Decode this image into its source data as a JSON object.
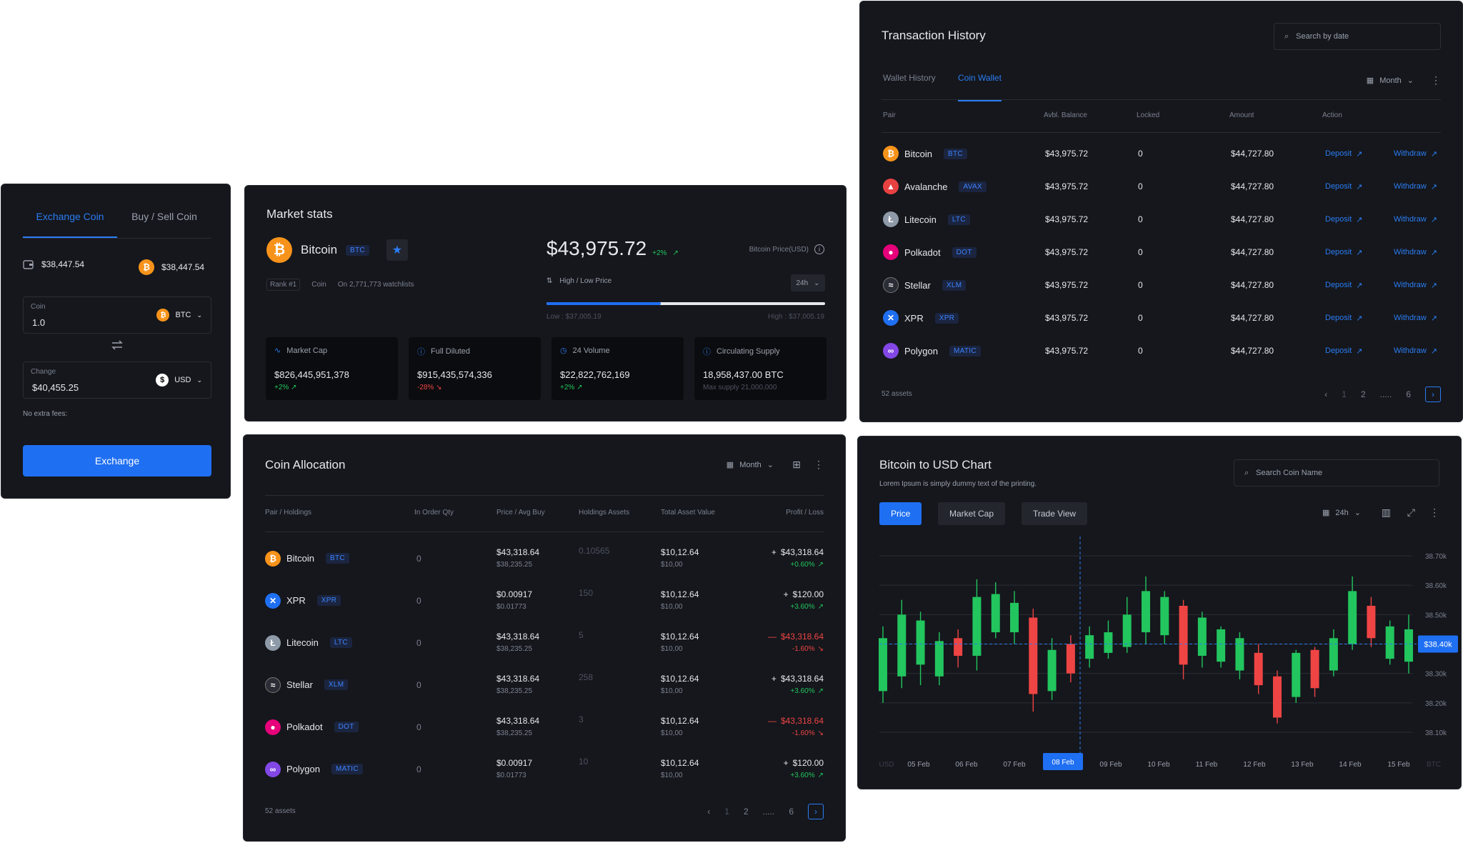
{
  "exchange": {
    "tabs": [
      "Exchange Coin",
      "Buy / Sell Coin"
    ],
    "wallet_balance": "$38,447.54",
    "btc_balance": "$38,447.54",
    "coin_label": "Coin",
    "coin_value": "1.0",
    "coin_select": "BTC",
    "change_label": "Change",
    "change_value": "$40,455.25",
    "change_select": "USD",
    "fee_note": "No extra fees:",
    "button": "Exchange"
  },
  "market": {
    "title": "Market stats",
    "coin_name": "Bitcoin",
    "coin_symbol": "BTC",
    "rank": "Rank #1",
    "type": "Coin",
    "watchlists": "On 2,771,773 watchlists",
    "price": "$43,975.72",
    "price_change": "+2%",
    "price_label": "Bitcoin Price(USD)",
    "hl_label": "High / Low Price",
    "hl_period": "24h",
    "range_fill": 0.41,
    "low": "Low : $37,005.19",
    "high": "High : $37,005.19",
    "stats": [
      {
        "label": "Market Cap",
        "value": "$826,445,951,378",
        "delta": "+2%",
        "dir": "up",
        "icon": "trend-icon"
      },
      {
        "label": "Full Diluted",
        "value": "$915,435,574,336",
        "delta": "-28%",
        "dir": "down",
        "icon": "info-icon"
      },
      {
        "label": "24 Volume",
        "value": "$22,822,762,169",
        "delta": "+2%",
        "dir": "up",
        "icon": "clock-icon"
      },
      {
        "label": "Circulating Supply",
        "value": "18,958,437.00 BTC",
        "delta": "Max supply 21,000,000",
        "dir": "none",
        "icon": "info-icon"
      }
    ]
  },
  "txn": {
    "title": "Transaction History",
    "search_placeholder": "Search by date",
    "tabs": [
      "Wallet History",
      "Coin Wallet"
    ],
    "period": "Month",
    "headers": [
      "Pair",
      "Avbl. Balance",
      "Locked",
      "Amount",
      "Action"
    ],
    "rows": [
      {
        "name": "Bitcoin",
        "sym": "BTC",
        "cls": "c-btc",
        "glyph": "₿",
        "bal": "$43,975.72",
        "locked": "0",
        "amount": "$44,727.80"
      },
      {
        "name": "Avalanche",
        "sym": "AVAX",
        "cls": "c-avax",
        "glyph": "▲",
        "bal": "$43,975.72",
        "locked": "0",
        "amount": "$44,727.80"
      },
      {
        "name": "Litecoin",
        "sym": "LTC",
        "cls": "c-ltc",
        "glyph": "Ł",
        "bal": "$43,975.72",
        "locked": "0",
        "amount": "$44,727.80"
      },
      {
        "name": "Polkadot",
        "sym": "DOT",
        "cls": "c-dot",
        "glyph": "●",
        "bal": "$43,975.72",
        "locked": "0",
        "amount": "$44,727.80"
      },
      {
        "name": "Stellar",
        "sym": "XLM",
        "cls": "c-xlm",
        "glyph": "≈",
        "bal": "$43,975.72",
        "locked": "0",
        "amount": "$44,727.80"
      },
      {
        "name": "XPR",
        "sym": "XPR",
        "cls": "c-xpr",
        "glyph": "✕",
        "bal": "$43,975.72",
        "locked": "0",
        "amount": "$44,727.80"
      },
      {
        "name": "Polygon",
        "sym": "MATIC",
        "cls": "c-matic",
        "glyph": "∞",
        "bal": "$43,975.72",
        "locked": "0",
        "amount": "$44,727.80"
      }
    ],
    "deposit": "Deposit",
    "withdraw": "Withdraw",
    "footer": "52 assets",
    "pages": [
      "1",
      "2",
      ".....",
      "6"
    ]
  },
  "alloc": {
    "title": "Coin Allocation",
    "period": "Month",
    "headers": [
      "Pair / Holdings",
      "In Order Qty",
      "Price / Avg Buy",
      "Holdings Assets",
      "Total Asset Value",
      "Profit / Loss"
    ],
    "rows": [
      {
        "name": "Bitcoin",
        "sym": "BTC",
        "cls": "c-btc",
        "glyph": "₿",
        "qty": "0",
        "price": "$43,318.64",
        "avg": "$38,235.25",
        "hold": "0.10565",
        "total": "$10,12.64",
        "total2": "$10,00",
        "pl": "$43,318.64",
        "pct": "+0.60%",
        "dir": "up"
      },
      {
        "name": "XPR",
        "sym": "XPR",
        "cls": "c-xpr",
        "glyph": "✕",
        "qty": "0",
        "price": "$0.00917",
        "avg": "$0.01773",
        "hold": "150",
        "total": "$10,12.64",
        "total2": "$10,00",
        "pl": "$120.00",
        "pct": "+3.60%",
        "dir": "up"
      },
      {
        "name": "Litecoin",
        "sym": "LTC",
        "cls": "c-ltc",
        "glyph": "Ł",
        "qty": "0",
        "price": "$43,318.64",
        "avg": "$38,235.25",
        "hold": "5",
        "total": "$10,12.64",
        "total2": "$10,00",
        "pl": "$43,318.64",
        "pct": "-1.60%",
        "dir": "down"
      },
      {
        "name": "Stellar",
        "sym": "XLM",
        "cls": "c-xlm",
        "glyph": "≈",
        "qty": "0",
        "price": "$43,318.64",
        "avg": "$38,235.25",
        "hold": "258",
        "total": "$10,12.64",
        "total2": "$10,00",
        "pl": "$43,318.64",
        "pct": "+3.60%",
        "dir": "up"
      },
      {
        "name": "Polkadot",
        "sym": "DOT",
        "cls": "c-dot",
        "glyph": "●",
        "qty": "0",
        "price": "$43,318.64",
        "avg": "$38,235.25",
        "hold": "3",
        "total": "$10,12.64",
        "total2": "$10,00",
        "pl": "$43,318.64",
        "pct": "-1.60%",
        "dir": "down"
      },
      {
        "name": "Polygon",
        "sym": "MATIC",
        "cls": "c-matic",
        "glyph": "∞",
        "qty": "0",
        "price": "$0.00917",
        "avg": "$0.01773",
        "hold": "10",
        "total": "$10,12.64",
        "total2": "$10,00",
        "pl": "$120.00",
        "pct": "+3.60%",
        "dir": "up"
      }
    ],
    "footer": "52 assets",
    "pages": [
      "1",
      "2",
      ".....",
      "6"
    ]
  },
  "chart": {
    "title": "Bitcoin to USD Chart",
    "subtitle": "Lorem Ipsum is simply dummy text of the printing.",
    "search_placeholder": "Search Coin Name",
    "tabs": [
      "Price",
      "Market Cap",
      "Trade View"
    ],
    "period": "24h",
    "current_label": "$38.40k",
    "active_x": "08 Feb",
    "x_unit_left": "USD",
    "x_unit_right": "BTC"
  },
  "chart_data": {
    "type": "candlestick",
    "x_ticks": [
      "05 Feb",
      "06 Feb",
      "07 Feb",
      "08 Feb",
      "09 Feb",
      "10 Feb",
      "11 Feb",
      "12 Feb",
      "13 Feb",
      "14 Feb",
      "15 Feb"
    ],
    "y_ticks": [
      "38.70k",
      "38.60k",
      "38.50k",
      "38.40k",
      "38.30k",
      "38.20k",
      "38.10k"
    ],
    "ylim": [
      38.1,
      38.7
    ],
    "current": 38.4,
    "candles": [
      {
        "o": 38.24,
        "c": 38.42,
        "h": 38.46,
        "l": 38.2
      },
      {
        "o": 38.29,
        "c": 38.5,
        "h": 38.55,
        "l": 38.25
      },
      {
        "o": 38.33,
        "c": 38.48,
        "h": 38.51,
        "l": 38.26
      },
      {
        "o": 38.29,
        "c": 38.41,
        "h": 38.44,
        "l": 38.26
      },
      {
        "o": 38.42,
        "c": 38.36,
        "h": 38.45,
        "l": 38.32
      },
      {
        "o": 38.36,
        "c": 38.56,
        "h": 38.62,
        "l": 38.31
      },
      {
        "o": 38.44,
        "c": 38.57,
        "h": 38.61,
        "l": 38.42
      },
      {
        "o": 38.44,
        "c": 38.54,
        "h": 38.58,
        "l": 38.4
      },
      {
        "o": 38.49,
        "c": 38.23,
        "h": 38.52,
        "l": 38.17
      },
      {
        "o": 38.24,
        "c": 38.38,
        "h": 38.42,
        "l": 38.21
      },
      {
        "o": 38.4,
        "c": 38.3,
        "h": 38.43,
        "l": 38.27
      },
      {
        "o": 38.35,
        "c": 38.43,
        "h": 38.46,
        "l": 38.32
      },
      {
        "o": 38.37,
        "c": 38.44,
        "h": 38.48,
        "l": 38.35
      },
      {
        "o": 38.39,
        "c": 38.5,
        "h": 38.56,
        "l": 38.37
      },
      {
        "o": 38.44,
        "c": 38.58,
        "h": 38.63,
        "l": 38.4
      },
      {
        "o": 38.43,
        "c": 38.56,
        "h": 38.58,
        "l": 38.4
      },
      {
        "o": 38.53,
        "c": 38.33,
        "h": 38.55,
        "l": 38.28
      },
      {
        "o": 38.36,
        "c": 38.49,
        "h": 38.51,
        "l": 38.32
      },
      {
        "o": 38.34,
        "c": 38.45,
        "h": 38.46,
        "l": 38.32
      },
      {
        "o": 38.31,
        "c": 38.42,
        "h": 38.44,
        "l": 38.28
      },
      {
        "o": 38.37,
        "c": 38.26,
        "h": 38.4,
        "l": 38.23
      },
      {
        "o": 38.29,
        "c": 38.15,
        "h": 38.31,
        "l": 38.13
      },
      {
        "o": 38.22,
        "c": 38.37,
        "h": 38.38,
        "l": 38.2
      },
      {
        "o": 38.38,
        "c": 38.25,
        "h": 38.39,
        "l": 38.22
      },
      {
        "o": 38.31,
        "c": 38.42,
        "h": 38.45,
        "l": 38.29
      },
      {
        "o": 38.4,
        "c": 38.58,
        "h": 38.63,
        "l": 38.38
      },
      {
        "o": 38.53,
        "c": 38.42,
        "h": 38.56,
        "l": 38.39
      },
      {
        "o": 38.35,
        "c": 38.46,
        "h": 38.48,
        "l": 38.33
      },
      {
        "o": 38.34,
        "c": 38.45,
        "h": 38.5,
        "l": 38.3
      }
    ]
  },
  "colors": {
    "accent": "#1f6ff2",
    "up": "#22c55e",
    "down": "#ef4444",
    "bg": "#15171c"
  }
}
